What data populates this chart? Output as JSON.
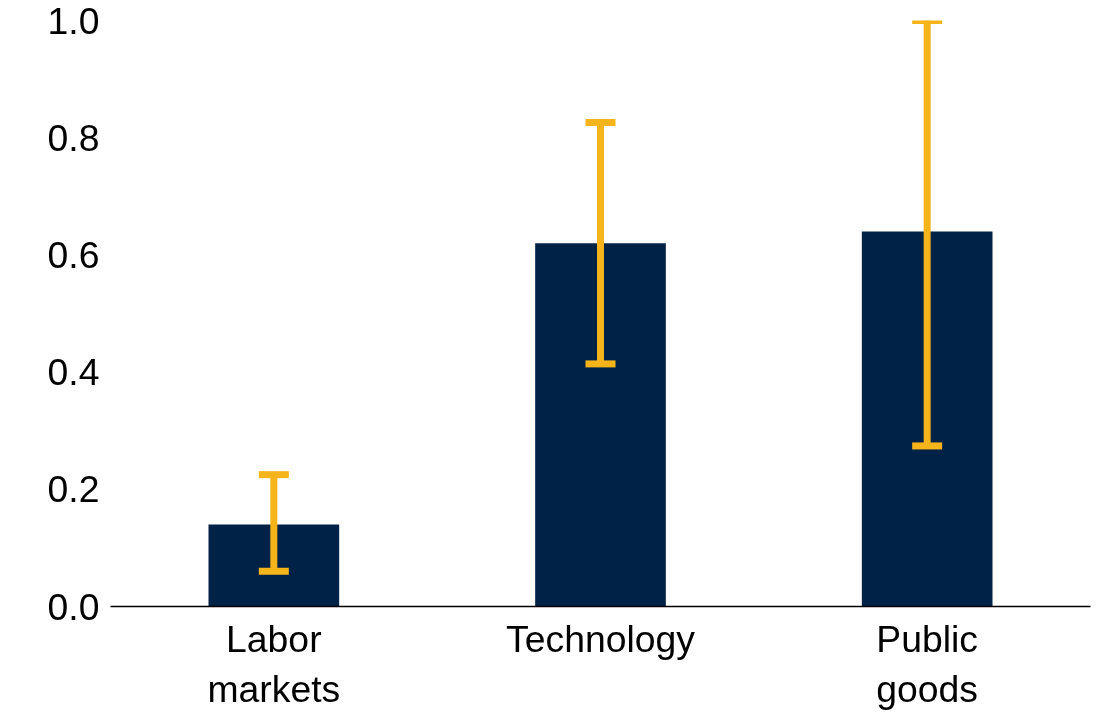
{
  "chart_data": {
    "type": "bar",
    "categories": [
      "Labor\nmarkets",
      "Technology",
      "Public\ngoods"
    ],
    "values": [
      0.14,
      0.62,
      0.64
    ],
    "color": "#002247",
    "errors": [
      [
        0.06,
        0.225
      ],
      0.206,
      [
        0.274,
        1.0
      ]
    ],
    "ylim": [
      0,
      1.0
    ],
    "yticks": [
      {
        "value": 0,
        "label": "0.0"
      },
      0.2,
      0.4,
      0.6,
      0.8,
      {
        "value": 1.0,
        "label": "1.0"
      }
    ],
    "grid": false
  }
}
